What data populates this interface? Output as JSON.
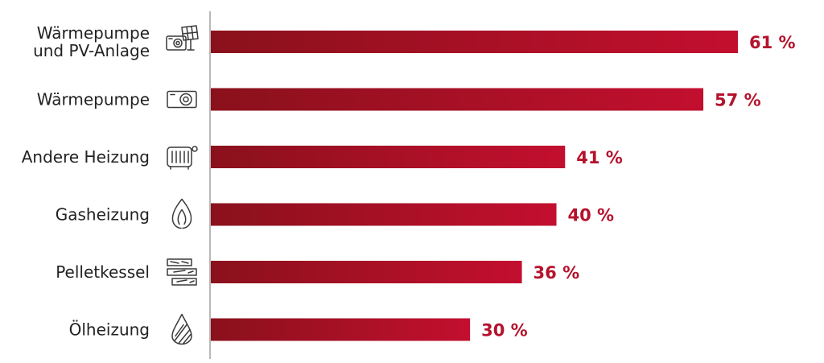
{
  "chart_data": {
    "type": "bar",
    "orientation": "horizontal",
    "categories": [
      [
        "Wärmepumpe",
        "und PV-Anlage"
      ],
      [
        "Wärmepumpe"
      ],
      [
        "Andere Heizung"
      ],
      [
        "Gasheizung"
      ],
      [
        "Pelletkessel"
      ],
      [
        "Ölheizung"
      ]
    ],
    "values": [
      61,
      57,
      41,
      40,
      36,
      30
    ],
    "value_labels": [
      "61 %",
      "57 %",
      "41 %",
      "40 %",
      "36 %",
      "30 %"
    ],
    "icons": [
      "heat-pump-pv-icon",
      "heat-pump-icon",
      "radiator-icon",
      "gas-flame-icon",
      "pellet-wood-icon",
      "oil-drop-icon"
    ],
    "xlim": [
      0,
      100
    ],
    "grid": false,
    "colors": {
      "bar_start": "#8a111c",
      "bar_end": "#c30f2f",
      "value_text": "#b5122c",
      "axis": "#a0a0a0"
    }
  }
}
